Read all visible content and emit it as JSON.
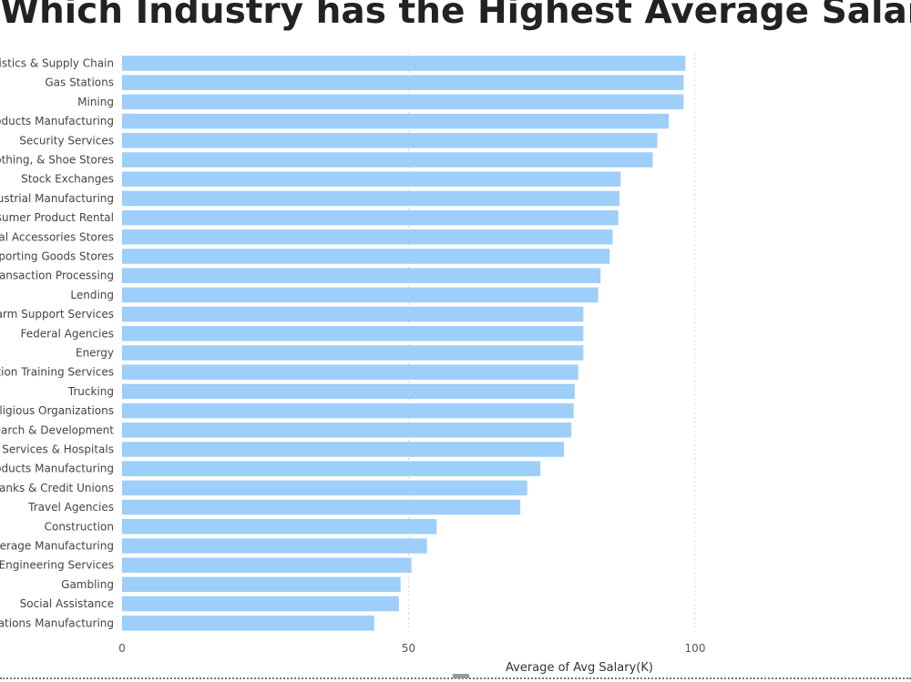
{
  "chart_data": {
    "type": "bar",
    "orientation": "horizontal",
    "title": "Which Industry has the Highest Average Salary",
    "xlabel": "Average of Avg Salary(K)",
    "ylabel": "",
    "xlim": [
      0,
      100
    ],
    "xticks": [
      "0",
      "50",
      "100"
    ],
    "grid": true,
    "bar_color": "#9ECEFA",
    "categories": [
      "ogistics & Supply Chain",
      "Gas Stations",
      "Mining",
      "roducts Manufacturing",
      "Security Services",
      "lothing, & Shoe Stores",
      "Stock Exchanges",
      "dustrial Manufacturing",
      "nsumer Product Rental",
      "onal Accessories Stores",
      "Sporting Goods Stores",
      "Transaction Processing",
      "Lending",
      "Farm Support Services",
      "Federal Agencies",
      "Energy",
      "cation Training Services",
      "Trucking",
      "Religious Organizations",
      "search & Development",
      "re Services & Hospitals",
      "roducts Manufacturing",
      "Banks & Credit Unions",
      "Travel Agencies",
      "Construction",
      "everage Manufacturing",
      "& Engineering Services",
      "Gambling",
      "Social Assistance",
      "ications Manufacturing"
    ],
    "values": [
      98.3,
      98.0,
      98.0,
      95.4,
      93.4,
      92.6,
      87.0,
      86.8,
      86.6,
      85.6,
      85.1,
      83.5,
      83.1,
      80.5,
      80.5,
      80.5,
      79.6,
      79.0,
      78.8,
      78.4,
      77.1,
      73.0,
      70.7,
      69.5,
      54.9,
      53.2,
      50.5,
      48.6,
      48.3,
      44.0
    ]
  }
}
